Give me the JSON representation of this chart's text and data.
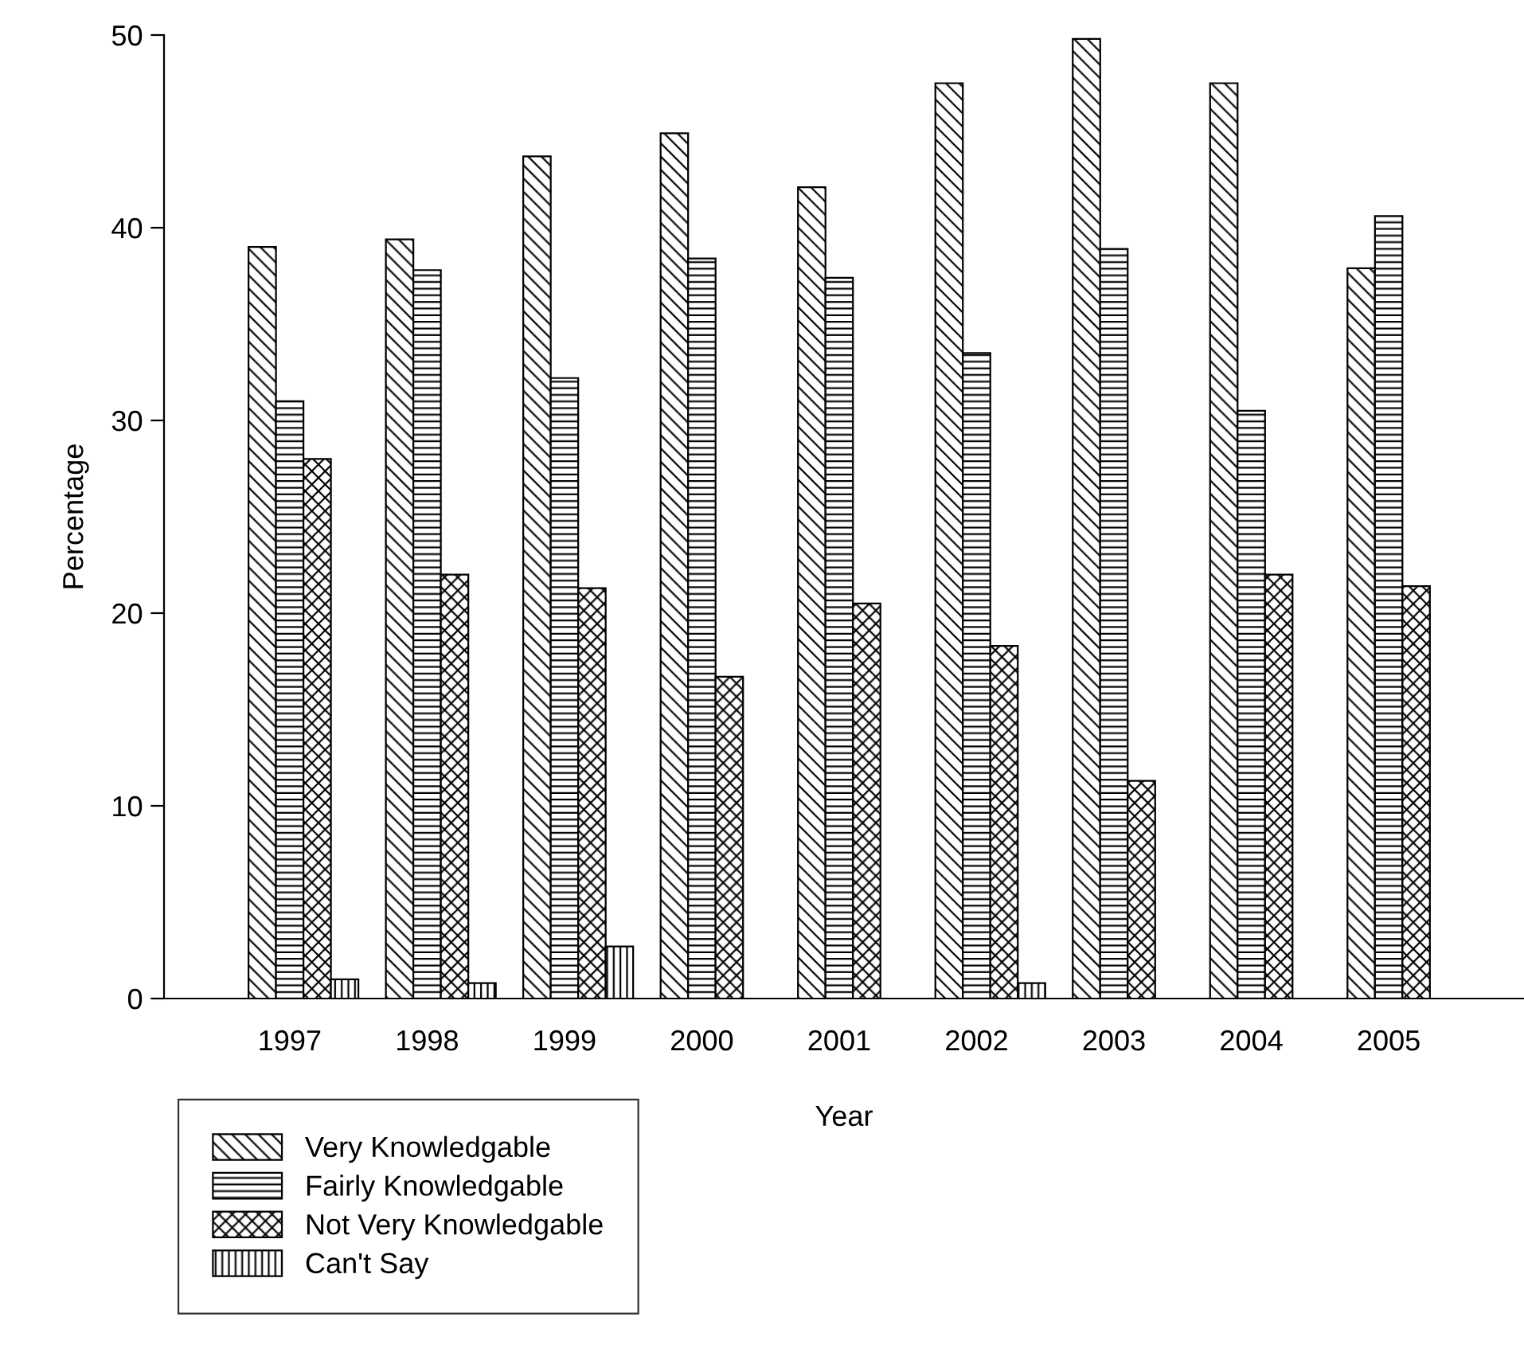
{
  "chart_data": {
    "type": "bar",
    "xlabel": "Year",
    "ylabel": "Percentage",
    "categories": [
      "1997",
      "1998",
      "1999",
      "2000",
      "2001",
      "2002",
      "2003",
      "2004",
      "2005"
    ],
    "series": [
      {
        "name": "Very Knowledgable",
        "color": "#000000",
        "values": [
          39.0,
          39.4,
          43.7,
          44.9,
          42.1,
          47.5,
          49.8,
          47.5,
          37.9
        ]
      },
      {
        "name": "Fairly Knowledgable",
        "color": "#000000",
        "values": [
          31.0,
          37.8,
          32.2,
          38.4,
          37.4,
          33.5,
          38.9,
          30.5,
          40.6
        ]
      },
      {
        "name": "Not Very Knowledgable",
        "color": "#000000",
        "values": [
          28.0,
          22.0,
          21.3,
          16.7,
          20.5,
          18.3,
          11.3,
          22.0,
          21.4
        ]
      },
      {
        "name": "Can't Say",
        "color": "#000000",
        "values": [
          1.0,
          0.8,
          2.7,
          null,
          null,
          0.8,
          null,
          null,
          null
        ]
      }
    ],
    "ylim": [
      0,
      50
    ],
    "yticks": [
      0,
      10,
      20,
      30,
      40,
      50
    ],
    "grid": false,
    "legend": "bottom left"
  }
}
